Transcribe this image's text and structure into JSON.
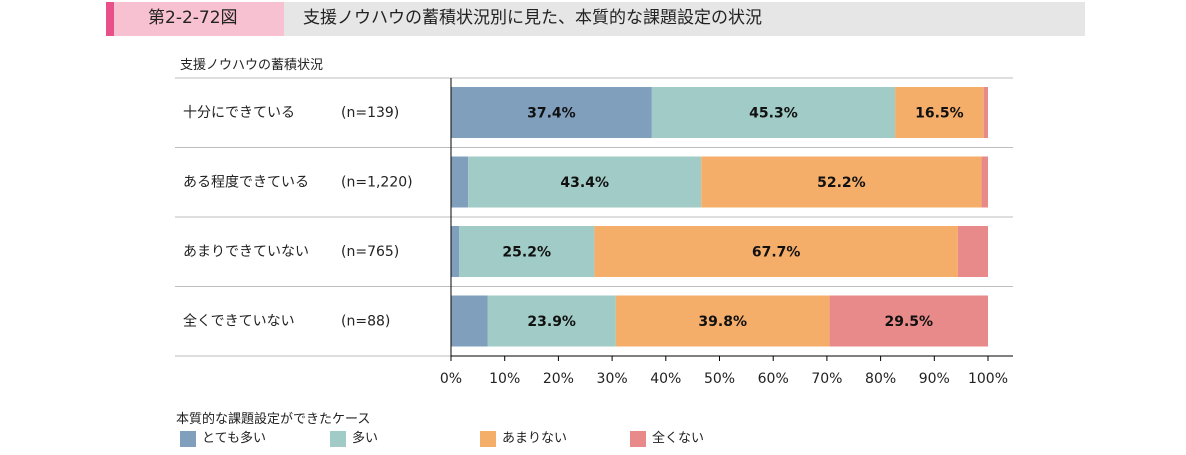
{
  "header": {
    "tag": "第2-2-72図",
    "title": "支援ノウハウの蓄積状況別に見た、本質的な課題設定の状況"
  },
  "colors": {
    "header_accent": "#e8508a",
    "header_tag_bg": "#f7c1d1",
    "header_bg": "#e6e6e6"
  },
  "chart_data": {
    "type": "bar",
    "orientation": "horizontal",
    "stacked": true,
    "row_axis_label": "支援ノウハウの蓄積状況",
    "legend_title": "本質的な課題設定ができたケース",
    "categories": [
      "十分にできている",
      "ある程度できている",
      "あまりできていない",
      "全くできていない"
    ],
    "sample_sizes": [
      "(n=139)",
      "(n=1,220)",
      "(n=765)",
      "(n=88)"
    ],
    "series": [
      {
        "name": "とても多い",
        "color": "#7f9fbd",
        "values": [
          37.4,
          3.2,
          1.5,
          6.8
        ]
      },
      {
        "name": "多い",
        "color": "#a0cbc6",
        "values": [
          45.3,
          43.4,
          25.2,
          23.9
        ]
      },
      {
        "name": "あまりない",
        "color": "#f5ae6a",
        "values": [
          16.5,
          52.2,
          67.7,
          39.8
        ]
      },
      {
        "name": "全くない",
        "color": "#e88a8a",
        "values": [
          0.8,
          1.2,
          5.6,
          29.5
        ]
      }
    ],
    "data_labels": [
      [
        "37.4%",
        "45.3%",
        "16.5%",
        ""
      ],
      [
        "",
        "43.4%",
        "52.2%",
        ""
      ],
      [
        "",
        "25.2%",
        "67.7%",
        ""
      ],
      [
        "",
        "23.9%",
        "39.8%",
        "29.5%"
      ]
    ],
    "x_ticks": [
      "0%",
      "10%",
      "20%",
      "30%",
      "40%",
      "50%",
      "60%",
      "70%",
      "80%",
      "90%",
      "100%"
    ],
    "xlim": [
      0,
      100
    ],
    "legend_position": "bottom"
  }
}
